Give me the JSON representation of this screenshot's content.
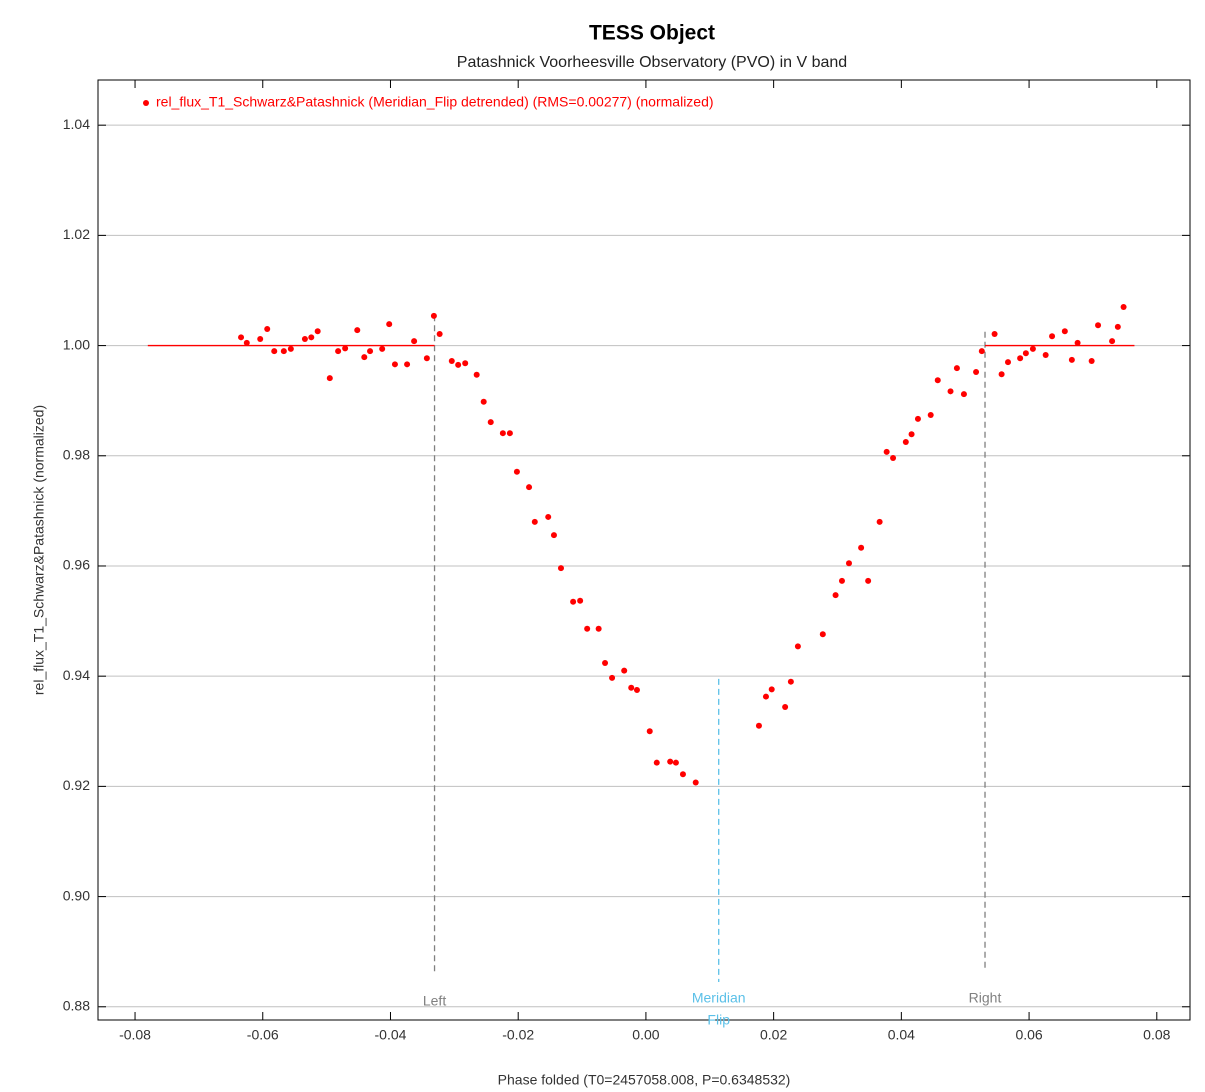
{
  "chart_data": {
    "type": "scatter",
    "title": "TESS Object",
    "subtitle": "Patashnick Voorheesville Observatory (PVO) in V band",
    "x_label": "Phase folded (T0=2457058.008, P=0.6348532)",
    "y_label": "rel_flux_T1_Schwarz&Patashnick (normalized)",
    "xlim": [
      -0.0858,
      0.0852
    ],
    "ylim": [
      0.8776,
      1.0482
    ],
    "xticks": [
      -0.08,
      -0.06,
      -0.04,
      -0.02,
      {
        "value": 0,
        "label": "0.00"
      },
      0.02,
      0.04,
      0.06,
      0.08
    ],
    "yticks": [
      0.88,
      {
        "value": 0.9,
        "label": "0.90"
      },
      0.92,
      0.94,
      0.96,
      0.98,
      {
        "value": 1,
        "label": "1.00"
      },
      1.02,
      1.04
    ],
    "grid": true,
    "legend": "upper left",
    "series": [
      {
        "name": "rel_flux_T1_Schwarz&Patashnick (Meridian_Flip detrended) (RMS=0.00277) (normalized)",
        "color": "#ff0000",
        "x": [
          -0.0634,
          -0.0625,
          -0.0604,
          -0.0593,
          -0.0582,
          -0.0567,
          -0.0556,
          -0.0534,
          -0.0524,
          -0.0514,
          -0.0495,
          -0.0482,
          -0.0471,
          -0.0452,
          -0.0441,
          -0.0432,
          -0.0413,
          -0.0402,
          -0.0393,
          -0.0374,
          -0.0363,
          -0.0343,
          -0.0332,
          -0.0323,
          -0.0304,
          -0.0294,
          -0.0283,
          -0.0265,
          -0.0254,
          -0.0243,
          -0.0224,
          -0.0213,
          -0.0202,
          -0.0183,
          -0.0174,
          -0.0153,
          -0.0144,
          -0.0133,
          -0.0114,
          -0.0103,
          -0.0092,
          -0.0074,
          -0.0064,
          -0.0053,
          -0.0034,
          -0.0023,
          -0.0014,
          0.0006,
          0.0017,
          0.0038,
          0.0047,
          0.0058,
          0.0078,
          0.0177,
          0.0188,
          0.0197,
          0.0218,
          0.0227,
          0.0238,
          0.0277,
          0.0297,
          0.0307,
          0.0318,
          0.0337,
          0.0348,
          0.0366,
          0.0377,
          0.0387,
          0.0407,
          0.0416,
          0.0426,
          0.0446,
          0.0457,
          0.0477,
          0.0487,
          0.0498,
          0.0517,
          0.0526,
          0.0546,
          0.0557,
          0.0567,
          0.0586,
          0.0595,
          0.0606,
          0.0626,
          0.0636,
          0.0656,
          0.0667,
          0.0676,
          0.0698,
          0.0708,
          0.073,
          0.0739,
          0.0748
        ],
        "values": [
          1.0015,
          1.0005,
          1.0012,
          1.003,
          0.999,
          0.999,
          0.9994,
          1.0012,
          1.0015,
          1.0026,
          0.9941,
          0.999,
          0.9995,
          1.0028,
          0.9979,
          0.999,
          0.9994,
          1.0039,
          0.9966,
          0.9966,
          1.0008,
          0.9977,
          1.0054,
          1.0021,
          0.9972,
          0.9965,
          0.9968,
          0.9947,
          0.9898,
          0.9861,
          0.9841,
          0.9841,
          0.9771,
          0.9743,
          0.968,
          0.9689,
          0.9656,
          0.9596,
          0.9535,
          0.9537,
          0.9486,
          0.9486,
          0.9424,
          0.9397,
          0.941,
          0.9379,
          0.9375,
          0.93,
          0.9243,
          0.9245,
          0.9243,
          0.9222,
          0.9207,
          0.931,
          0.9363,
          0.9376,
          0.9344,
          0.939,
          0.9454,
          0.9476,
          0.9547,
          0.9573,
          0.9605,
          0.9633,
          0.9573,
          0.968,
          0.9807,
          0.9796,
          0.9825,
          0.9839,
          0.9867,
          0.9874,
          0.9937,
          0.9917,
          0.9959,
          0.9912,
          0.9952,
          0.999,
          1.0021,
          0.9948,
          0.997,
          0.9977,
          0.9986,
          0.9994,
          0.9983,
          1.0017,
          1.0026,
          0.9974,
          1.0005,
          0.9972,
          1.0037,
          1.0008,
          1.0034,
          1.007
        ]
      }
    ],
    "model_lines": [
      {
        "color": "#ff0000",
        "x": [
          -0.078,
          -0.0331
        ],
        "values": [
          1,
          1
        ]
      },
      {
        "color": "#ff0000",
        "x": [
          0.0531,
          0.0765
        ],
        "values": [
          1,
          1
        ]
      }
    ],
    "markers": [
      {
        "label": [
          "Left"
        ],
        "x": -0.0331,
        "y_top": 1.0055,
        "y_bottom": 0.886,
        "color": "#808080"
      },
      {
        "label": [
          "Meridian",
          "Flip"
        ],
        "x": 0.0114,
        "y_top": 0.9395,
        "y_bottom": 0.8845,
        "color": "#5bc0e8"
      },
      {
        "label": [
          "Right"
        ],
        "x": 0.0531,
        "y_top": 1.0025,
        "y_bottom": 0.8865,
        "color": "#808080"
      }
    ]
  }
}
